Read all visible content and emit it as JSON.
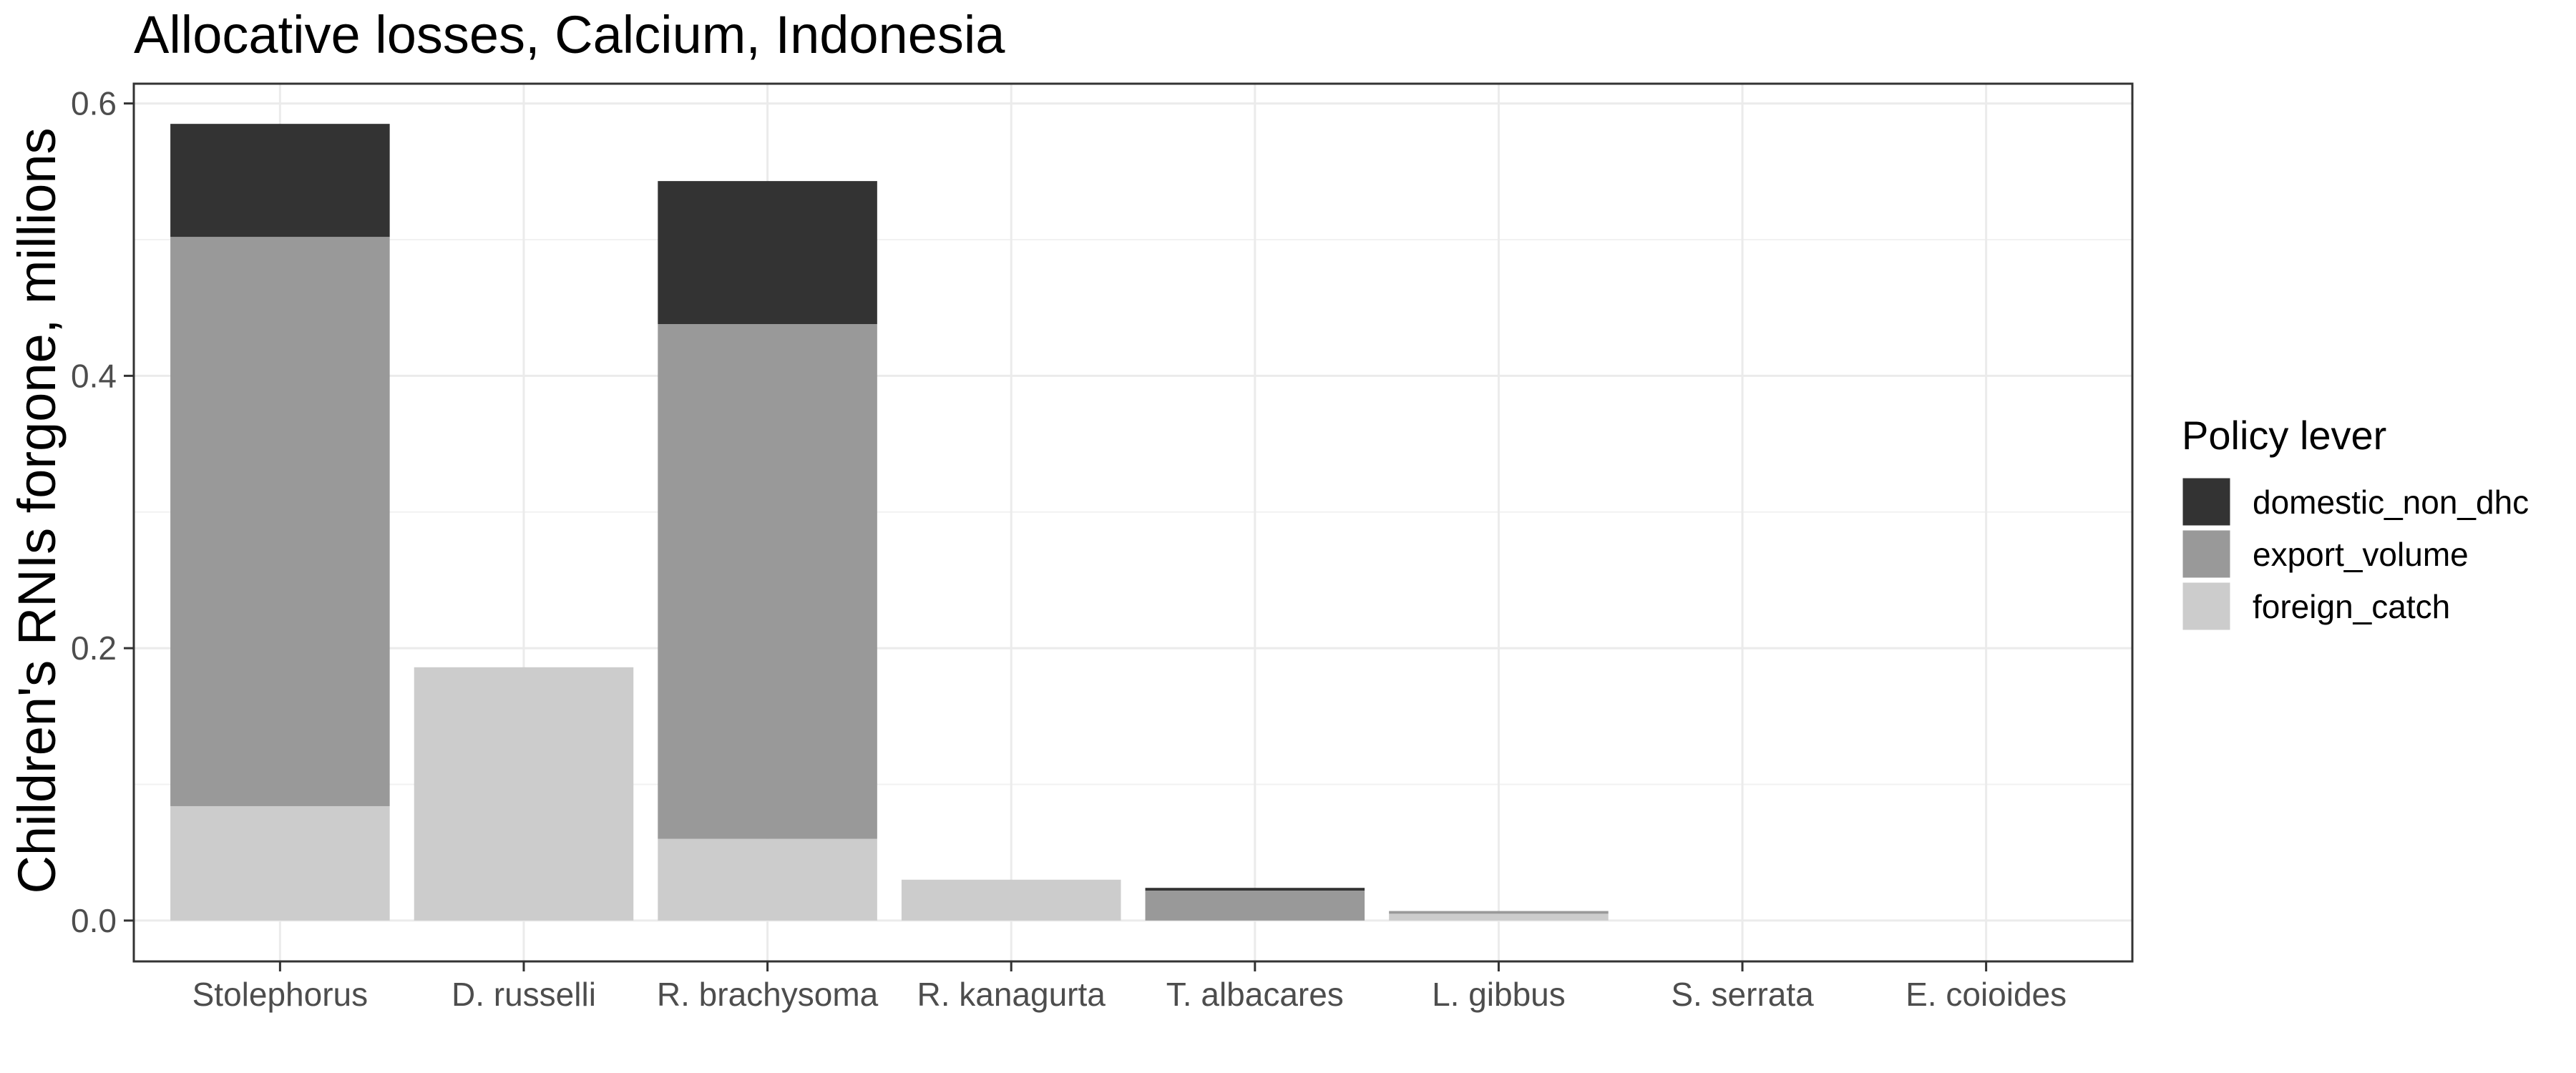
{
  "chart_data": {
    "type": "bar",
    "stacked": true,
    "title": "Allocative losses, Calcium, Indonesia",
    "xlabel": "",
    "ylabel": "Children's RNIs forgone, millions",
    "ylim": [
      -0.03,
      0.6145
    ],
    "yticks": [
      "0.0",
      "0.2",
      "0.4",
      "0.6"
    ],
    "grid": true,
    "legend_position": "right",
    "legend_title": "Policy lever",
    "categories": [
      "Stolephorus",
      "D. russelli",
      "R. brachysoma",
      "R. kanagurta",
      "T. albacares",
      "L. gibbus",
      "S. serrata",
      "E. coioides"
    ],
    "series": [
      {
        "name": "foreign_catch",
        "color": "#cccccc",
        "values": [
          0.084,
          0.186,
          0.06,
          0.03,
          0.0,
          0.005,
          0.0,
          0.0
        ]
      },
      {
        "name": "export_volume",
        "color": "#999999",
        "values": [
          0.418,
          0.0,
          0.378,
          0.0,
          0.022,
          0.002,
          0.0,
          0.0
        ]
      },
      {
        "name": "domestic_non_dhc",
        "color": "#333333",
        "values": [
          0.083,
          0.0,
          0.105,
          0.0,
          0.002,
          0.0,
          0.0,
          0.0
        ]
      }
    ],
    "legend_order": [
      "domestic_non_dhc",
      "export_volume",
      "foreign_catch"
    ]
  }
}
